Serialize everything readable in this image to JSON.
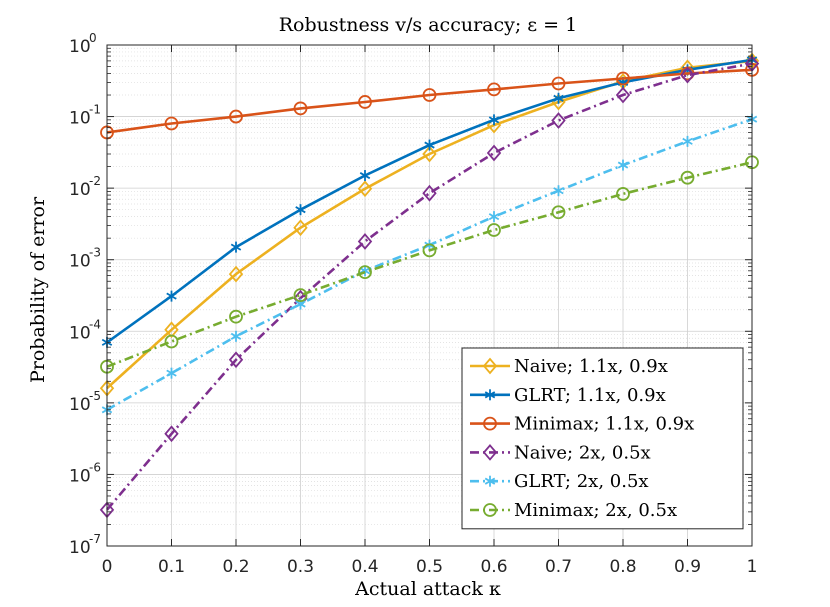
{
  "chart_data": {
    "type": "line",
    "title": "Robustness v/s accuracy; ε = 1",
    "xlabel": "Actual attack κ",
    "ylabel": "Probability of error",
    "yscale": "log",
    "xlim": [
      0,
      1
    ],
    "ylim": [
      1e-07,
      1
    ],
    "grid": true,
    "legend_position": "bottom-right",
    "x": [
      0,
      0.1,
      0.2,
      0.3,
      0.4,
      0.5,
      0.6,
      0.7,
      0.8,
      0.9,
      1
    ],
    "x_ticks": [
      "0",
      "0.1",
      "0.2",
      "0.3",
      "0.4",
      "0.5",
      "0.6",
      "0.7",
      "0.8",
      "0.9",
      "1"
    ],
    "y_ticks": [
      {
        "base": "10",
        "exp": "-7"
      },
      {
        "base": "10",
        "exp": "-6"
      },
      {
        "base": "10",
        "exp": "-5"
      },
      {
        "base": "10",
        "exp": "-4"
      },
      {
        "base": "10",
        "exp": "-3"
      },
      {
        "base": "10",
        "exp": "-2"
      },
      {
        "base": "10",
        "exp": "-1"
      },
      {
        "base": "10",
        "exp": "0"
      }
    ],
    "series": [
      {
        "name": "Naive; 1.1x, 0.9x",
        "color": "#EDB120",
        "dash": "solid",
        "marker": "diamond",
        "values": [
          1.6e-05,
          0.000105,
          0.00063,
          0.0028,
          0.0098,
          0.03,
          0.076,
          0.16,
          0.31,
          0.48,
          0.6
        ]
      },
      {
        "name": "GLRT; 1.1x, 0.9x",
        "color": "#0072BD",
        "dash": "solid",
        "marker": "asterisk",
        "values": [
          7e-05,
          0.00031,
          0.0015,
          0.005,
          0.015,
          0.04,
          0.09,
          0.18,
          0.3,
          0.45,
          0.62
        ]
      },
      {
        "name": "Minimax; 1.1x, 0.9x",
        "color": "#D95319",
        "dash": "solid",
        "marker": "circle",
        "values": [
          0.06,
          0.08,
          0.1,
          0.13,
          0.16,
          0.2,
          0.24,
          0.29,
          0.34,
          0.4,
          0.45
        ]
      },
      {
        "name": "Naive; 2x, 0.5x",
        "color": "#7E2F8E",
        "dash": "dashdot",
        "marker": "diamond",
        "values": [
          3.2e-07,
          3.7e-06,
          4e-05,
          0.00029,
          0.0018,
          0.0085,
          0.031,
          0.088,
          0.2,
          0.38,
          0.55
        ]
      },
      {
        "name": "GLRT; 2x, 0.5x",
        "color": "#4DBEEE",
        "dash": "dashdot",
        "marker": "asterisk",
        "values": [
          8e-06,
          2.6e-05,
          8.5e-05,
          0.00024,
          0.0007,
          0.0016,
          0.004,
          0.0092,
          0.021,
          0.045,
          0.092
        ]
      },
      {
        "name": "Minimax; 2x, 0.5x",
        "color": "#77AC30",
        "dash": "dashdot",
        "marker": "circle",
        "values": [
          3.2e-05,
          7.2e-05,
          0.00016,
          0.00032,
          0.00067,
          0.00135,
          0.0026,
          0.0046,
          0.0083,
          0.014,
          0.023
        ]
      }
    ]
  }
}
